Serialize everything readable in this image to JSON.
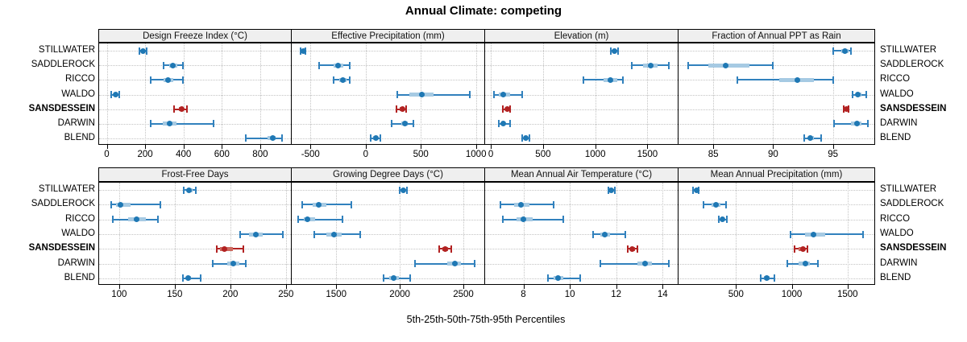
{
  "title": "Annual Climate: competing",
  "xlabel": "5th-25th-50th-75th-95th Percentiles",
  "sites": [
    "STILLWATER",
    "SADDLEROCK",
    "RICCO",
    "WALDO",
    "SANSDESSEIN",
    "DARWIN",
    "BLEND"
  ],
  "highlight_site": "SANSDESSEIN",
  "colors": {
    "normal_dot": "#1f78b4",
    "normal_whisker": "#3181bd",
    "normal_band": "#a6cae3",
    "highlight_dot": "#b22222",
    "highlight_whisker": "#b22222",
    "highlight_band": "#cd6a5f",
    "strip_bg": "#efefef",
    "grid": "#c3c3c3",
    "border": "#000000"
  },
  "chart_data": {
    "type": "scatter",
    "subtype": "trellis-percentile-dotplot",
    "title": "Annual Climate: competing",
    "xlabel": "5th-25th-50th-75th-95th Percentiles",
    "legend_position": "none",
    "grid": "dotted",
    "percentiles_order": [
      "p5",
      "p25",
      "p50",
      "p75",
      "p95"
    ],
    "categories": [
      "STILLWATER",
      "SADDLEROCK",
      "RICCO",
      "WALDO",
      "SANSDESSEIN",
      "DARWIN",
      "BLEND"
    ],
    "panels": [
      {
        "label": "Design Freeze Index (°C)",
        "row": 0,
        "col": 0,
        "xlim": [
          -40,
          960
        ],
        "ticks": [
          0,
          200,
          400,
          600,
          800
        ],
        "series": [
          {
            "site": "STILLWATER",
            "values": [
              168,
              180,
              187,
              196,
              207
            ]
          },
          {
            "site": "SADDLEROCK",
            "values": [
              295,
              327,
              345,
              366,
              396
            ]
          },
          {
            "site": "RICCO",
            "values": [
              228,
              297,
              320,
              345,
              397
            ]
          },
          {
            "site": "WALDO",
            "values": [
              22,
              36,
              45,
              55,
              65
            ]
          },
          {
            "site": "SANSDESSEIN",
            "values": [
              352,
              376,
              390,
              402,
              416
            ]
          },
          {
            "site": "DARWIN",
            "values": [
              228,
              291,
              326,
              362,
              556
            ]
          },
          {
            "site": "BLEND",
            "values": [
              723,
              836,
              866,
              882,
              912
            ]
          }
        ]
      },
      {
        "label": "Effective Precipitation (mm)",
        "row": 0,
        "col": 1,
        "xlim": [
          -670,
          1075
        ],
        "ticks": [
          -500,
          0,
          500,
          1000
        ],
        "series": [
          {
            "site": "STILLWATER",
            "values": [
              -592,
              -578,
              -568,
              -558,
              -547
            ]
          },
          {
            "site": "SADDLEROCK",
            "values": [
              -423,
              -292,
              -252,
              -203,
              -142
            ]
          },
          {
            "site": "RICCO",
            "values": [
              -291,
              -242,
              -207,
              -172,
              -146
            ]
          },
          {
            "site": "WALDO",
            "values": [
              288,
              398,
              508,
              618,
              943
            ]
          },
          {
            "site": "SANSDESSEIN",
            "values": [
              278,
              309,
              331,
              347,
              366
            ]
          },
          {
            "site": "DARWIN",
            "values": [
              238,
              319,
              352,
              381,
              432
            ]
          },
          {
            "site": "BLEND",
            "values": [
              44,
              69,
              91,
              111,
              132
            ]
          }
        ]
      },
      {
        "label": "Elevation (m)",
        "row": 0,
        "col": 2,
        "xlim": [
          -55,
          1790
        ],
        "ticks": [
          0,
          500,
          1000,
          1500
        ],
        "series": [
          {
            "site": "STILLWATER",
            "values": [
              1148,
              1170,
              1186,
              1201,
              1217
            ]
          },
          {
            "site": "SADDLEROCK",
            "values": [
              1348,
              1459,
              1532,
              1601,
              1704
            ]
          },
          {
            "site": "RICCO",
            "values": [
              888,
              1079,
              1142,
              1209,
              1262
            ]
          },
          {
            "site": "WALDO",
            "values": [
              28,
              79,
              121,
              182,
              302
            ]
          },
          {
            "site": "SANSDESSEIN",
            "values": [
              118,
              139,
              154,
              170,
              186
            ]
          },
          {
            "site": "DARWIN",
            "values": [
              78,
              104,
              121,
              141,
              182
            ]
          },
          {
            "site": "BLEND",
            "values": [
              298,
              319,
              336,
              351,
              367
            ]
          }
        ]
      },
      {
        "label": "Fraction of Annual PPT as Rain",
        "row": 0,
        "col": 3,
        "xlim": [
          82.1,
          98.45
        ],
        "ticks": [
          85,
          90,
          95
        ],
        "series": [
          {
            "site": "STILLWATER",
            "values": [
              95.0,
              95.7,
              96.0,
              96.3,
              96.5
            ]
          },
          {
            "site": "SADDLEROCK",
            "values": [
              82.9,
              84.6,
              86.0,
              88.0,
              90.0
            ]
          },
          {
            "site": "RICCO",
            "values": [
              87.0,
              90.5,
              92.0,
              93.4,
              95.0
            ]
          },
          {
            "site": "WALDO",
            "values": [
              96.6,
              96.9,
              97.1,
              97.4,
              97.8
            ]
          },
          {
            "site": "SANSDESSEIN",
            "values": [
              95.9,
              96.0,
              96.1,
              96.2,
              96.3
            ]
          },
          {
            "site": "DARWIN",
            "values": [
              95.1,
              96.5,
              97.0,
              97.4,
              97.9
            ]
          },
          {
            "site": "BLEND",
            "values": [
              92.6,
              92.9,
              93.1,
              93.4,
              94.0
            ]
          }
        ]
      },
      {
        "label": "Frost-Free Days",
        "row": 1,
        "col": 0,
        "xlim": [
          82,
          254.5
        ],
        "ticks": [
          100,
          150,
          200,
          250
        ],
        "series": [
          {
            "site": "STILLWATER",
            "values": [
              158,
              161,
              163,
              166,
              169
            ]
          },
          {
            "site": "SADDLEROCK",
            "values": [
              93,
              97,
              101,
              110,
              137
            ]
          },
          {
            "site": "RICCO",
            "values": [
              94,
              108,
              116,
              124,
              135
            ]
          },
          {
            "site": "WALDO",
            "values": [
              209,
              217,
              223,
              229,
              247
            ]
          },
          {
            "site": "SANSDESSEIN",
            "values": [
              188,
              191,
              195,
              202,
              212
            ]
          },
          {
            "site": "DARWIN",
            "values": [
              184,
              197,
              203,
              208,
              214
            ]
          },
          {
            "site": "BLEND",
            "values": [
              157,
              160,
              162,
              165,
              173
            ]
          }
        ]
      },
      {
        "label": "Growing Degree Days (°C)",
        "row": 1,
        "col": 1,
        "xlim": [
          1150,
          2665
        ],
        "ticks": [
          1500,
          2000,
          2500
        ],
        "series": [
          {
            "site": "STILLWATER",
            "values": [
              2000,
              2016,
              2028,
              2042,
              2056
            ]
          },
          {
            "site": "SADDLEROCK",
            "values": [
              1232,
              1312,
              1362,
              1422,
              1618
            ]
          },
          {
            "site": "RICCO",
            "values": [
              1202,
              1242,
              1272,
              1332,
              1548
            ]
          },
          {
            "site": "WALDO",
            "values": [
              1330,
              1422,
              1482,
              1542,
              1688
            ]
          },
          {
            "site": "SANSDESSEIN",
            "values": [
              2312,
              2336,
              2358,
              2382,
              2406
            ]
          },
          {
            "site": "DARWIN",
            "values": [
              2122,
              2372,
              2432,
              2482,
              2590
            ]
          },
          {
            "site": "BLEND",
            "values": [
              1872,
              1916,
              1952,
              1992,
              2082
            ]
          }
        ]
      },
      {
        "label": "Mean Annual Air Temperature (°C)",
        "row": 1,
        "col": 2,
        "xlim": [
          6.35,
          14.65
        ],
        "ticks": [
          8,
          10,
          12,
          14
        ],
        "series": [
          {
            "site": "STILLWATER",
            "values": [
              11.65,
              11.74,
              11.8,
              11.88,
              11.95
            ]
          },
          {
            "site": "SADDLEROCK",
            "values": [
              7.0,
              7.6,
              7.9,
              8.25,
              9.3
            ]
          },
          {
            "site": "RICCO",
            "values": [
              7.1,
              7.7,
              8.0,
              8.4,
              9.7
            ]
          },
          {
            "site": "WALDO",
            "values": [
              11.0,
              11.3,
              11.5,
              11.72,
              12.4
            ]
          },
          {
            "site": "SANSDESSEIN",
            "values": [
              12.5,
              12.62,
              12.7,
              12.8,
              12.9
            ]
          },
          {
            "site": "DARWIN",
            "values": [
              11.3,
              12.9,
              13.25,
              13.55,
              14.25
            ]
          },
          {
            "site": "BLEND",
            "values": [
              9.05,
              9.3,
              9.5,
              9.72,
              10.45
            ]
          }
        ]
      },
      {
        "label": "Mean Annual Precipitation (mm)",
        "row": 1,
        "col": 3,
        "xlim": [
          -15,
          1740
        ],
        "ticks": [
          500,
          1000,
          1500
        ],
        "series": [
          {
            "site": "STILLWATER",
            "values": [
              118,
              133,
              144,
              156,
              168
            ]
          },
          {
            "site": "SADDLEROCK",
            "values": [
              210,
              282,
              320,
              362,
              412
            ]
          },
          {
            "site": "RICCO",
            "values": [
              344,
              366,
              381,
              396,
              416
            ]
          },
          {
            "site": "WALDO",
            "values": [
              988,
              1122,
              1192,
              1302,
              1642
            ]
          },
          {
            "site": "SANSDESSEIN",
            "values": [
              1022,
              1062,
              1098,
              1122,
              1142
            ]
          },
          {
            "site": "DARWIN",
            "values": [
              958,
              1062,
              1122,
              1162,
              1232
            ]
          },
          {
            "site": "BLEND",
            "values": [
              718,
              752,
              776,
              802,
              842
            ]
          }
        ]
      }
    ]
  }
}
